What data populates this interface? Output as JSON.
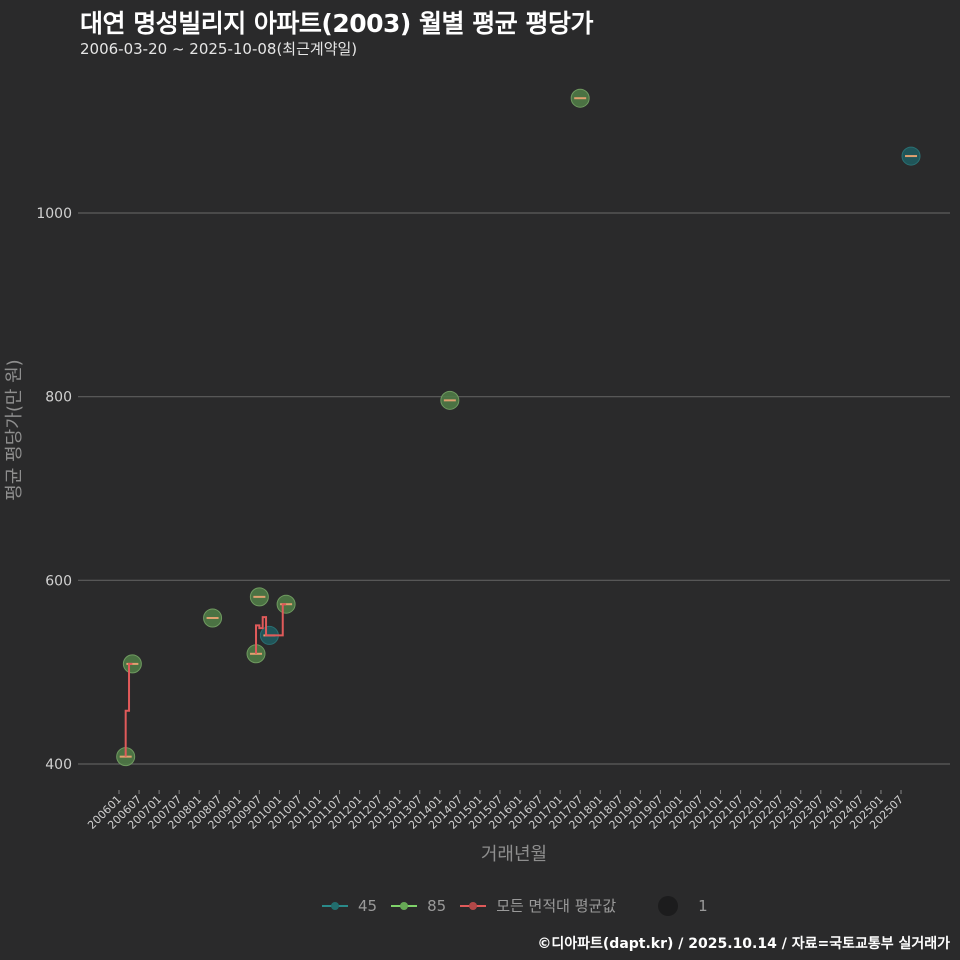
{
  "header": {
    "title": "대연 명성빌리지 아파트(2003) 월별 평균 평당가",
    "subtitle": "2006-03-20 ~ 2025-10-08(최근계약일)"
  },
  "axes": {
    "y_label": "평균 평당가(만 원)",
    "x_label": "거래년월",
    "y_ticks": [
      "1000",
      "800",
      "600",
      "400"
    ]
  },
  "legend": {
    "items": [
      {
        "label": "45",
        "color": "#2a8a8a"
      },
      {
        "label": "85",
        "color": "#7fd36a"
      },
      {
        "label": "모든 면적대 평균값",
        "color": "#e05a5a"
      }
    ],
    "size_label": "1"
  },
  "caption": "©디아파트(dapt.kr) / 2025.10.14 / 자료=국토교통부 실거래가",
  "chart_data": {
    "type": "scatter",
    "title": "대연 명성빌리지 아파트(2003) 월별 평균 평당가",
    "subtitle": "2006-03-20 ~ 2025-10-08(최근계약일)",
    "xlabel": "거래년월",
    "ylabel": "평균 평당가(만 원)",
    "ylim": [
      380,
      1140
    ],
    "y_ticks": [
      400,
      600,
      800,
      1000
    ],
    "x_ticks": [
      "200601",
      "200607",
      "200701",
      "200707",
      "200801",
      "200807",
      "200901",
      "200907",
      "201001",
      "201007",
      "201101",
      "201107",
      "201201",
      "201207",
      "201301",
      "201307",
      "201401",
      "201407",
      "201501",
      "201507",
      "201601",
      "201607",
      "201701",
      "201707",
      "201801",
      "201807",
      "201901",
      "201907",
      "202001",
      "202007",
      "202101",
      "202107",
      "202201",
      "202207",
      "202301",
      "202307",
      "202401",
      "202407",
      "202501",
      "202507"
    ],
    "grid": true,
    "legend_position": "bottom",
    "series": [
      {
        "name": "45",
        "color": "#2a8a8a",
        "points": [
          {
            "x": "200910",
            "y": 540
          },
          {
            "x": "202510",
            "y": 1062
          }
        ]
      },
      {
        "name": "85",
        "color": "#7fd36a",
        "points": [
          {
            "x": "200603",
            "y": 408
          },
          {
            "x": "200605",
            "y": 509
          },
          {
            "x": "200805",
            "y": 559
          },
          {
            "x": "200906",
            "y": 520
          },
          {
            "x": "200907",
            "y": 582
          },
          {
            "x": "201003",
            "y": 574
          },
          {
            "x": "201404",
            "y": 796
          },
          {
            "x": "201707",
            "y": 1125
          }
        ]
      },
      {
        "name": "모든 면적대 평균값",
        "color": "#e05a5a",
        "type": "line",
        "points": [
          {
            "x": "200603",
            "y": 408
          },
          {
            "x": "200604",
            "y": 458
          },
          {
            "x": "200605",
            "y": 509
          },
          {
            "x": "200906",
            "y": 520
          },
          {
            "x": "200907",
            "y": 551
          },
          {
            "x": "200908",
            "y": 548
          },
          {
            "x": "200909",
            "y": 560
          },
          {
            "x": "200910",
            "y": 540
          },
          {
            "x": "201002",
            "y": 540
          },
          {
            "x": "201003",
            "y": 574
          }
        ]
      }
    ]
  }
}
